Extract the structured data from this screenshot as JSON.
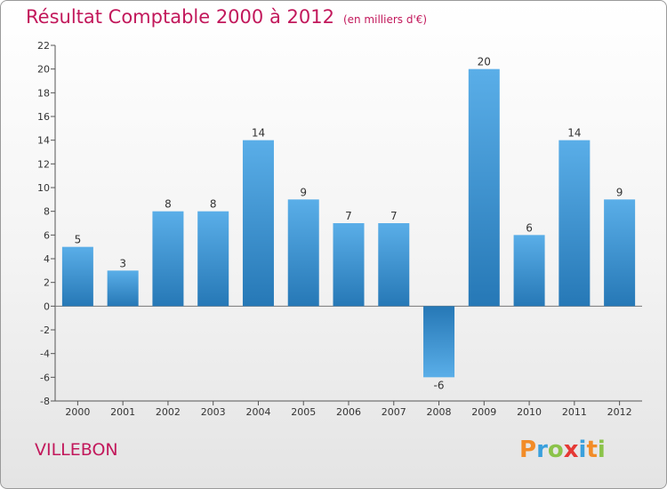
{
  "header": {
    "title": "Résultat Comptable 2000 à 2012",
    "unit": "(en milliers d'€)"
  },
  "commune": "VILLEBON",
  "brand": {
    "letters": [
      "P",
      "r",
      "o",
      "x",
      "i",
      "t",
      "i"
    ]
  },
  "colors": {
    "title": "#c2185b",
    "bar_light": "#5aaee8",
    "bar_dark": "#2678b6"
  },
  "chart_data": {
    "type": "bar",
    "title": "Résultat Comptable 2000 à 2012",
    "subtitle": "(en milliers d'€)",
    "xlabel": "",
    "ylabel": "",
    "categories": [
      "2000",
      "2001",
      "2002",
      "2003",
      "2004",
      "2005",
      "2006",
      "2007",
      "2008",
      "2009",
      "2010",
      "2011",
      "2012"
    ],
    "values": [
      5,
      3,
      8,
      8,
      14,
      9,
      7,
      7,
      -6,
      20,
      6,
      14,
      9
    ],
    "value_labels": [
      "5",
      "3",
      "8",
      "8",
      "14",
      "9",
      "7",
      "7",
      "-6",
      "20",
      "6",
      "14",
      "9"
    ],
    "ylim": [
      -8,
      22
    ],
    "yticks": [
      -8,
      -6,
      -4,
      -2,
      0,
      2,
      4,
      6,
      8,
      10,
      12,
      14,
      16,
      18,
      20,
      22
    ],
    "grid": false,
    "legend": "none"
  }
}
